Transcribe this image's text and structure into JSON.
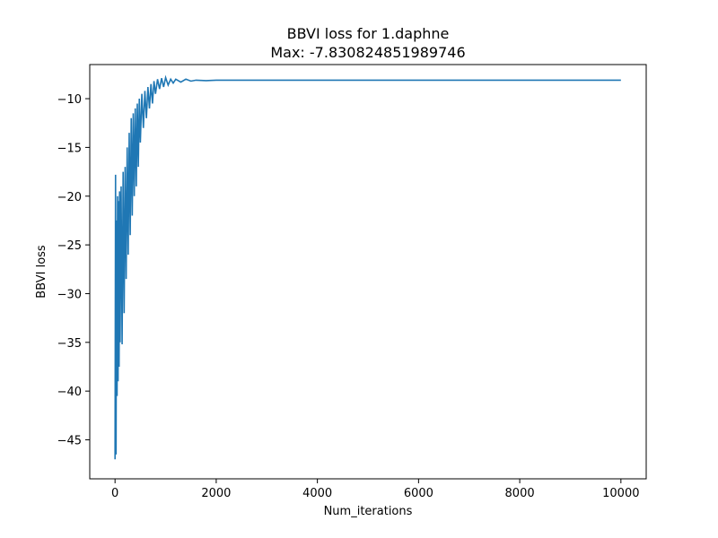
{
  "chart_data": {
    "type": "line",
    "title": "BBVI loss for 1.daphne",
    "subtitle": "Max: -7.830824851989746",
    "xlabel": "Num_iterations",
    "ylabel": "BBVI loss",
    "xlim": [
      -500,
      10500
    ],
    "ylim": [
      -49,
      -6.5
    ],
    "xticks": [
      0,
      2000,
      4000,
      6000,
      8000,
      10000
    ],
    "xtick_labels": [
      "0",
      "2000",
      "4000",
      "6000",
      "8000",
      "10000"
    ],
    "yticks": [
      -45,
      -40,
      -35,
      -30,
      -25,
      -20,
      -15,
      -10
    ],
    "ytick_labels": [
      "−45",
      "−40",
      "−35",
      "−30",
      "−25",
      "−20",
      "−15",
      "−10"
    ],
    "grid": false,
    "series": [
      {
        "color": "#1f77b4",
        "x": [
          0,
          10,
          20,
          30,
          40,
          50,
          60,
          70,
          80,
          90,
          100,
          120,
          140,
          160,
          180,
          200,
          220,
          240,
          260,
          280,
          300,
          320,
          340,
          360,
          380,
          400,
          420,
          440,
          460,
          480,
          500,
          530,
          560,
          590,
          620,
          650,
          680,
          710,
          740,
          770,
          800,
          840,
          880,
          920,
          960,
          1000,
          1050,
          1100,
          1150,
          1200,
          1300,
          1400,
          1500,
          1600,
          1800,
          2000,
          2100,
          10000
        ],
        "y": [
          -47.0,
          -17.8,
          -46.5,
          -22.5,
          -40.5,
          -20.0,
          -39.0,
          -20.5,
          -37.5,
          -19.5,
          -35.0,
          -19.0,
          -35.2,
          -17.5,
          -32.0,
          -17.0,
          -28.5,
          -15.0,
          -26.0,
          -13.5,
          -24.0,
          -12.0,
          -22.0,
          -11.5,
          -20.0,
          -11.0,
          -19.0,
          -10.5,
          -17.0,
          -10.0,
          -14.5,
          -9.5,
          -13.0,
          -9.2,
          -12.0,
          -8.8,
          -11.0,
          -8.5,
          -10.5,
          -8.2,
          -9.5,
          -8.0,
          -9.0,
          -7.9,
          -8.8,
          -7.83,
          -8.6,
          -8.0,
          -8.4,
          -8.0,
          -8.3,
          -8.0,
          -8.2,
          -8.1,
          -8.15,
          -8.1,
          -8.1,
          -8.1
        ]
      }
    ]
  }
}
